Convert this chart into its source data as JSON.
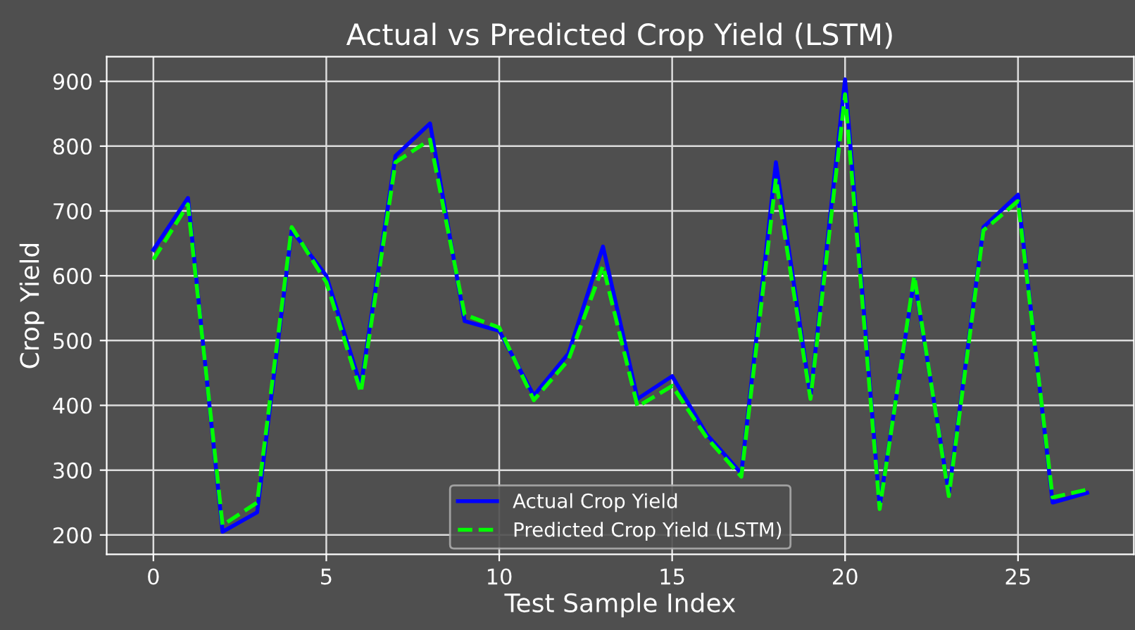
{
  "chart_data": {
    "type": "line",
    "title": "Actual vs Predicted Crop Yield (LSTM)",
    "xlabel": "Test Sample Index",
    "ylabel": "Crop Yield",
    "x": [
      0,
      1,
      2,
      3,
      4,
      5,
      6,
      7,
      8,
      9,
      10,
      11,
      12,
      13,
      14,
      15,
      16,
      17,
      18,
      19,
      20,
      21,
      22,
      23,
      24,
      25,
      26,
      27
    ],
    "series": [
      {
        "name": "Actual Crop Yield",
        "color": "#0000ff",
        "line_style": "solid",
        "values": [
          640,
          720,
          205,
          235,
          670,
          600,
          430,
          785,
          835,
          530,
          515,
          415,
          480,
          645,
          410,
          445,
          355,
          295,
          775,
          415,
          903,
          245,
          595,
          265,
          675,
          725,
          250,
          265
        ]
      },
      {
        "name": "Predicted Crop Yield (LSTM)",
        "color": "#00ff00",
        "line_style": "dashed",
        "values": [
          625,
          710,
          215,
          250,
          675,
          590,
          420,
          775,
          810,
          540,
          520,
          408,
          470,
          615,
          398,
          430,
          350,
          290,
          750,
          410,
          880,
          240,
          600,
          260,
          670,
          715,
          258,
          270
        ]
      }
    ],
    "xlim": [
      -1.35,
      28.35
    ],
    "ylim": [
      170,
      938
    ],
    "xticks": [
      0,
      5,
      10,
      15,
      20,
      25
    ],
    "yticks": [
      200,
      300,
      400,
      500,
      600,
      700,
      800,
      900
    ],
    "grid": true,
    "legend": "bottom",
    "marker": "none"
  }
}
